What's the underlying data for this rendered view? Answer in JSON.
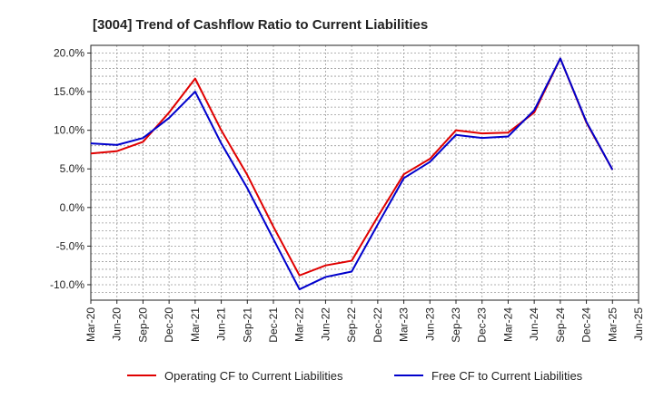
{
  "chart_data": {
    "type": "line",
    "title": "[3004]  Trend of Cashflow Ratio to Current Liabilities",
    "xlabel": "",
    "ylabel": "",
    "x": [
      "Mar-20",
      "Jun-20",
      "Sep-20",
      "Dec-20",
      "Mar-21",
      "Jun-21",
      "Sep-21",
      "Dec-21",
      "Mar-22",
      "Jun-22",
      "Sep-22",
      "Dec-22",
      "Mar-23",
      "Jun-23",
      "Sep-23",
      "Dec-23",
      "Mar-24",
      "Jun-24",
      "Sep-24",
      "Dec-24",
      "Mar-25",
      "Jun-25"
    ],
    "y_ticks": [
      "20.0%",
      "15.0%",
      "10.0%",
      "5.0%",
      "0.0%",
      "-5.0%",
      "-10.0%"
    ],
    "ylim": [
      -12,
      21
    ],
    "grid": true,
    "legend_position": "bottom",
    "series": [
      {
        "name": "Operating CF to Current Liabilities",
        "color": "#e00000",
        "values": [
          7.0,
          7.3,
          8.5,
          12.3,
          16.7,
          10.0,
          4.2,
          -2.5,
          -8.8,
          -7.5,
          -6.9,
          -1.2,
          4.3,
          6.3,
          10.0,
          9.6,
          9.7,
          12.3,
          19.3,
          11.0,
          4.9,
          null
        ]
      },
      {
        "name": "Free CF to Current Liabilities",
        "color": "#0000cc",
        "values": [
          8.3,
          8.1,
          9.0,
          11.6,
          15.0,
          8.3,
          2.5,
          -4.1,
          -10.6,
          -9.0,
          -8.3,
          -2.2,
          3.8,
          5.9,
          9.4,
          9.0,
          9.2,
          12.6,
          19.3,
          11.1,
          4.9,
          null
        ]
      }
    ]
  }
}
